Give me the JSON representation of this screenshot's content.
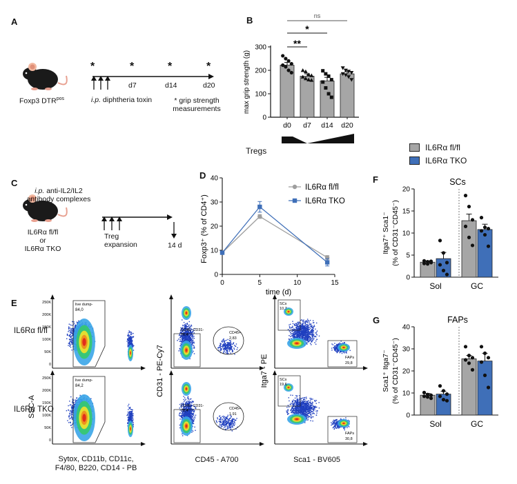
{
  "panel_letters": {
    "a": "A",
    "b": "B",
    "c": "C",
    "d": "D",
    "e": "E",
    "f": "F",
    "g": "G"
  },
  "panel_a": {
    "mouse_label": "Foxp3 DTR",
    "mouse_label_sup": "pos",
    "star": "*",
    "timepoints": [
      "d7",
      "d14",
      "d20"
    ],
    "injection_ip": "i.p.",
    "injection_rest": " diphtheria toxin",
    "grip_note_line1": "* grip strength",
    "grip_note_line2": "measurements"
  },
  "panel_b": {
    "sig_ns": "ns",
    "sig_double": "**",
    "sig_single": "*",
    "tregs_label": "Tregs",
    "chart_data": {
      "type": "bar",
      "categories": [
        "d0",
        "d7",
        "d14",
        "d20"
      ],
      "values": [
        222,
        175,
        155,
        185
      ],
      "sem": [
        12,
        10,
        15,
        9
      ],
      "points": [
        [
          262,
          250,
          240,
          228,
          222,
          215,
          200,
          190
        ],
        [
          200,
          195,
          182,
          178,
          172,
          165,
          160,
          158
        ],
        [
          198,
          185,
          175,
          160,
          150,
          125,
          100,
          85
        ],
        [
          210,
          200,
          195,
          190,
          185,
          180,
          172,
          160
        ]
      ],
      "xlabel": "",
      "ylabel": "max grip strength (g)",
      "yticks": [
        "0",
        "100",
        "200",
        "300"
      ],
      "ylim": [
        0,
        300
      ],
      "bar_color": "#a6a6a6"
    }
  },
  "panel_c": {
    "top_ip": "i.p.",
    "top_rest": " anti-IL2/IL2",
    "top_line2": "antibody complexes",
    "mouse_line1": "IL6Rα fl/fl",
    "mouse_line2": "or",
    "mouse_line3": "IL6Rα TKO",
    "arrow_line1": "Treg",
    "arrow_line2": "expansion",
    "endpoint": "14 d"
  },
  "panel_d": {
    "chart_data": {
      "type": "line",
      "x": [
        0,
        5,
        14
      ],
      "series": [
        {
          "name": "IL6Rα fl/fl",
          "values": [
            9,
            24,
            7
          ],
          "err": [
            0.5,
            0.8,
            0.8
          ],
          "color": "#9e9e9e"
        },
        {
          "name": "IL6Rα TKO",
          "values": [
            9,
            28,
            5
          ],
          "err": [
            0.5,
            2.2,
            1.5
          ],
          "color": "#3f6fb8"
        }
      ],
      "xlabel": "time (d)",
      "ylabel": "Foxp3⁺ (% of CD4⁺)",
      "xticks": [
        "0",
        "5",
        "10",
        "15"
      ],
      "yticks": [
        "0",
        "10",
        "20",
        "30",
        "40"
      ],
      "xlim": [
        0,
        15
      ],
      "ylim": [
        0,
        40
      ]
    }
  },
  "legend_fg": {
    "items": [
      {
        "label": "IL6Rα fl/fl",
        "color": "#a6a6a6"
      },
      {
        "label": "IL6Rα TKO",
        "color": "#3f6fb8"
      }
    ]
  },
  "panel_f": {
    "chart_data": {
      "type": "bar",
      "title": "SCs",
      "categories": [
        "Sol",
        "GC"
      ],
      "series": [
        {
          "name": "IL6Rα fl/fl",
          "values": [
            3.4,
            12.8
          ],
          "sem": [
            0.3,
            1.5
          ],
          "color": "#a6a6a6",
          "points": [
            [
              3.7,
              3.5,
              3.3,
              3.1,
              3.0,
              3.6
            ],
            [
              18.5,
              16.0,
              13.0,
              11.5,
              9.0,
              7.2
            ]
          ]
        },
        {
          "name": "IL6Rα TKO",
          "values": [
            4.2,
            10.8
          ],
          "sem": [
            1.4,
            1.2
          ],
          "color": "#3f6fb8",
          "points": [
            [
              8.3,
              5.5,
              3.3,
              2.8,
              1.5,
              0.6
            ],
            [
              13.5,
              11.3,
              11.0,
              10.5,
              9.6,
              7.0
            ]
          ]
        }
      ],
      "ylabel": "Itga7⁺ Sca1⁻ (% of CD31⁻CD45⁻)",
      "yticks": [
        "0",
        "5",
        "10",
        "15",
        "20"
      ],
      "ylim": [
        0,
        20
      ]
    }
  },
  "panel_g": {
    "chart_data": {
      "type": "bar",
      "title": "FAPs",
      "categories": [
        "Sol",
        "GC"
      ],
      "series": [
        {
          "name": "IL6Rα fl/fl",
          "values": [
            9.0,
            25.5
          ],
          "sem": [
            0.8,
            1.5
          ],
          "color": "#a6a6a6",
          "points": [
            [
              10.2,
              9.3,
              9.0,
              8.5,
              8.2,
              7.6
            ],
            [
              31.0,
              27.0,
              26.0,
              25.0,
              23.5,
              20.5
            ]
          ]
        },
        {
          "name": "IL6Rα TKO",
          "values": [
            9.5,
            24.5
          ],
          "sem": [
            1.3,
            3.5
          ],
          "color": "#3f6fb8",
          "points": [
            [
              13.2,
              11.0,
              9.5,
              8.5,
              7.0,
              6.5
            ],
            [
              31.0,
              28.0,
              26.0,
              24.0,
              18.0,
              12.5
            ]
          ]
        }
      ],
      "ylabel": "Sca1⁺ Itga7⁻ (% of CD31⁻CD45⁻)",
      "yticks": [
        "0",
        "10",
        "20",
        "30",
        "40"
      ],
      "ylim": [
        0,
        40
      ]
    }
  },
  "panel_e": {
    "row_labels": [
      "IL6Rα fl/fl",
      "IL6Rα TKO"
    ],
    "ylabels": [
      "SSC-A",
      "CD31 - PE-Cy7",
      "Itga7 - PE"
    ],
    "xlabels": [
      "Sytox, CD11b, CD11c, F4/80, B220, CD14 - PB",
      "CD45 - A700",
      "Sca1 - BV605"
    ],
    "xlabel_col1_line1": "Sytox, CD11b, CD11c,",
    "xlabel_col1_line2": "F4/80, B220, CD14 - PB",
    "ssc_ticks": [
      "250K",
      "200K",
      "150K",
      "100K",
      "50K",
      "0"
    ],
    "gates": {
      "live_dump_label": "live dump-",
      "live_dump_values": [
        "84,0",
        "84,2"
      ],
      "cd45cd31_label": "CD45- CD31-",
      "cd45cd31_values": [
        "76,4",
        "78,4"
      ],
      "cd45pos_label": "CD45+",
      "cd45pos_values": [
        "2,83",
        "1,91"
      ],
      "scs_label": "SCs",
      "scs_values": [
        "10,7",
        "19,6"
      ],
      "faps_label": "FAPs",
      "faps_values": [
        "29,8",
        "30,8"
      ]
    }
  }
}
